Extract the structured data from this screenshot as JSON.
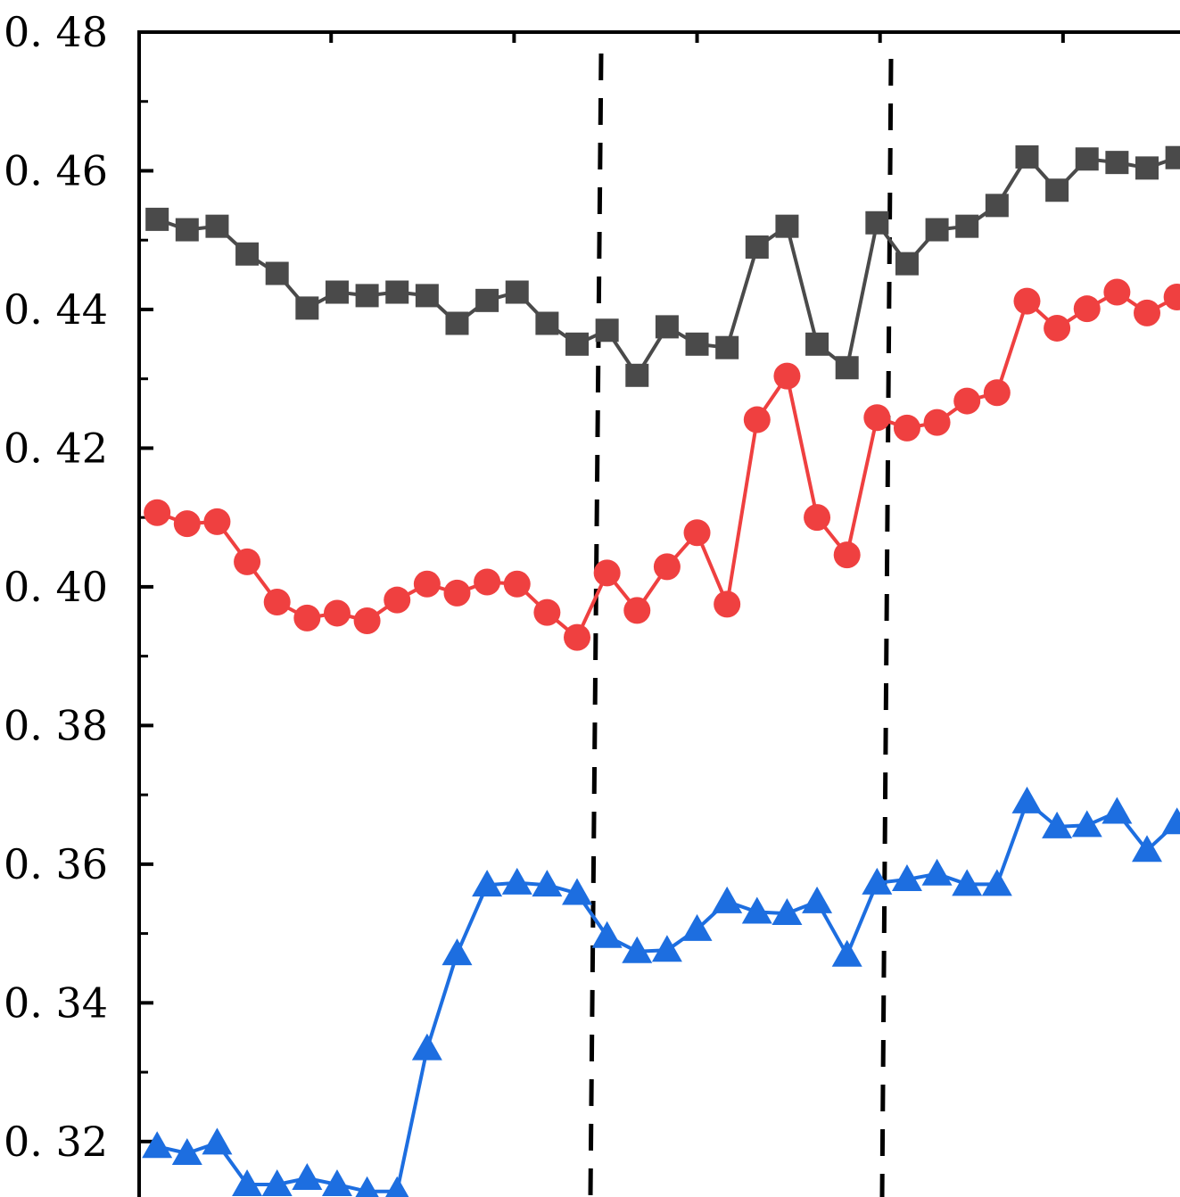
{
  "chart_data": {
    "type": "line",
    "title": "",
    "xlabel": "",
    "ylabel": "",
    "ylim": [
      0.312,
      0.48
    ],
    "yticks": [
      0.32,
      0.34,
      0.36,
      0.38,
      0.4,
      0.42,
      0.44,
      0.46,
      0.48
    ],
    "ytick_labels": [
      "0. 32",
      "0. 34",
      "0. 36",
      "0. 38",
      "0. 40",
      "0. 42",
      "0. 44",
      "0. 46",
      "0. 48"
    ],
    "xlim": [
      -0.6,
      34.1
    ],
    "x": [
      0,
      1,
      2,
      3,
      4,
      5,
      6,
      7,
      8,
      9,
      10,
      11,
      12,
      13,
      14,
      15,
      16,
      17,
      18,
      19,
      20,
      21,
      22,
      23,
      24,
      25,
      26,
      27,
      28,
      29,
      30,
      31,
      32,
      33,
      34
    ],
    "reference_lines_x": [
      14.1,
      24.1
    ],
    "series": [
      {
        "marker": "square",
        "color": "#4a4a4a",
        "values": [
          0.453,
          0.4515,
          0.452,
          0.448,
          0.4452,
          0.4402,
          0.4425,
          0.442,
          0.4425,
          0.442,
          0.438,
          0.4413,
          0.4425,
          0.438,
          0.435,
          0.437,
          0.4305,
          0.4375,
          0.435,
          0.4345,
          0.449,
          0.452,
          0.435,
          0.4316,
          0.4525,
          0.4466,
          0.4515,
          0.452,
          0.455,
          0.462,
          0.4572,
          0.4617,
          0.4612,
          0.4604,
          0.4619
        ]
      },
      {
        "marker": "circle",
        "color": "#ef4040",
        "values": [
          0.4107,
          0.4091,
          0.4094,
          0.4036,
          0.3978,
          0.3955,
          0.3962,
          0.3951,
          0.3981,
          0.4004,
          0.3991,
          0.4007,
          0.4004,
          0.3963,
          0.3927,
          0.402,
          0.3966,
          0.4029,
          0.4078,
          0.3975,
          0.4241,
          0.4304,
          0.41,
          0.4046,
          0.4244,
          0.4229,
          0.4237,
          0.4268,
          0.428,
          0.4412,
          0.4373,
          0.4401,
          0.4425,
          0.4395,
          0.4418
        ]
      },
      {
        "marker": "triangle",
        "color": "#1d6ee0",
        "values": [
          0.3193,
          0.3183,
          0.3198,
          0.3138,
          0.3138,
          0.3147,
          0.3138,
          0.3128,
          0.3128,
          0.3334,
          0.3471,
          0.357,
          0.3573,
          0.357,
          0.3558,
          0.3496,
          0.3474,
          0.3476,
          0.3506,
          0.3546,
          0.3531,
          0.3529,
          0.3546,
          0.3469,
          0.3573,
          0.3578,
          0.3586,
          0.3571,
          0.3571,
          0.369,
          0.3654,
          0.3656,
          0.3675,
          0.362,
          0.366
        ]
      }
    ]
  }
}
